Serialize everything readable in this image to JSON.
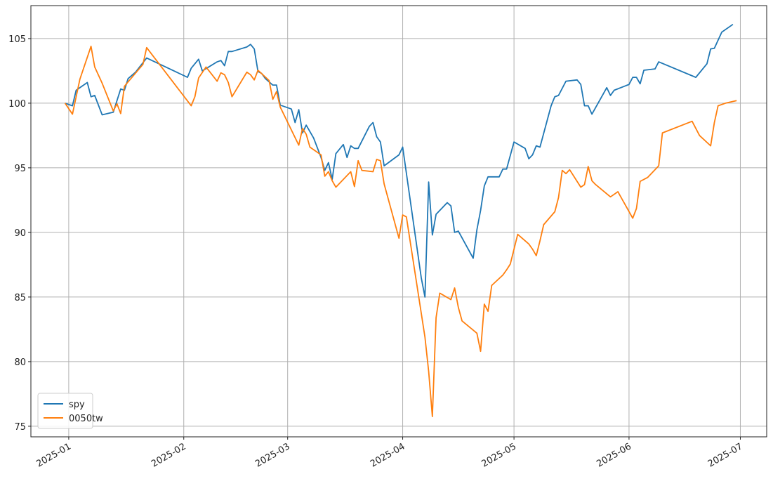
{
  "chart_data": {
    "type": "line",
    "xlim": [
      -10.2,
      188.1
    ],
    "xticks": [
      {
        "value": 0,
        "label": "2025-01"
      },
      {
        "value": 31,
        "label": "2025-02"
      },
      {
        "value": 59,
        "label": "2025-03"
      },
      {
        "value": 90,
        "label": "2025-04"
      },
      {
        "value": 120,
        "label": "2025-05"
      },
      {
        "value": 151,
        "label": "2025-06"
      },
      {
        "value": 181,
        "label": "2025-07"
      }
    ],
    "ylim": [
      74.18,
      107.55
    ],
    "yticks": [
      75,
      80,
      85,
      90,
      95,
      100,
      105
    ],
    "grid": true,
    "legend": "lower left",
    "series": [
      {
        "name": "spy",
        "color": "#1f77b4",
        "x": [
          -1,
          1,
          2,
          5,
          6,
          7,
          9,
          12,
          14,
          15,
          16,
          18,
          21,
          32,
          33,
          35,
          36,
          40,
          41,
          42,
          43,
          44,
          48,
          49,
          50,
          51,
          52,
          53,
          55,
          56,
          57,
          60,
          61,
          62,
          63,
          64,
          66,
          68,
          69,
          70,
          71,
          72,
          74,
          75,
          76,
          77,
          78,
          81,
          82,
          83,
          84,
          85,
          89,
          90,
          95,
          96,
          97,
          98,
          99,
          102,
          103,
          104,
          105,
          109,
          110,
          111,
          112,
          113,
          116,
          117,
          118,
          120,
          123,
          124,
          125,
          126,
          127,
          130,
          131,
          132,
          134,
          137,
          138,
          139,
          140,
          141,
          145,
          146,
          147,
          151,
          152,
          153,
          154,
          155,
          158,
          159,
          169,
          172,
          173,
          174,
          176,
          179
        ],
        "values": [
          100,
          99.8,
          101,
          101.6,
          100.5,
          100.6,
          99.1,
          99.3,
          101.1,
          101,
          101.9,
          102.4,
          103.5,
          102,
          102.7,
          103.4,
          102.5,
          103.2,
          103.3,
          102.9,
          104,
          104,
          104.35,
          104.55,
          104.2,
          102.45,
          102.3,
          101.9,
          101.4,
          101.4,
          99.85,
          99.55,
          98.5,
          99.5,
          97.7,
          98.3,
          97.3,
          95.8,
          94.8,
          95.4,
          94.1,
          96.1,
          96.8,
          95.8,
          96.7,
          96.5,
          96.5,
          98.2,
          98.5,
          97.4,
          97,
          95.15,
          96,
          96.6,
          86.5,
          85,
          93.9,
          89.8,
          91.4,
          92.3,
          92.05,
          90,
          90.1,
          88,
          90.2,
          91.7,
          93.6,
          94.3,
          94.3,
          94.9,
          94.9,
          97,
          96.5,
          95.7,
          96,
          96.7,
          96.6,
          99.8,
          100.5,
          100.6,
          101.7,
          101.8,
          101.45,
          99.8,
          99.8,
          99.15,
          101.2,
          100.6,
          101,
          101.45,
          102,
          102,
          101.5,
          102.55,
          102.65,
          103.2,
          102,
          103.05,
          104.2,
          104.25,
          105.5,
          106.1
        ]
      },
      {
        "name": "0050tw",
        "color": "#ff7f0e",
        "x": [
          -1,
          1,
          3,
          6,
          7,
          9,
          12,
          13,
          14,
          15,
          16,
          20,
          21,
          33,
          34,
          35,
          37,
          40,
          41,
          42,
          43,
          44,
          48,
          49,
          50,
          51,
          54,
          55,
          56,
          57,
          62,
          63,
          64,
          65,
          68,
          69,
          70,
          71,
          72,
          76,
          77,
          78,
          79,
          82,
          83,
          84,
          85,
          89,
          90,
          91,
          96,
          97,
          98,
          99,
          100,
          103,
          104,
          105,
          106,
          110,
          111,
          112,
          113,
          114,
          117,
          118,
          119,
          121,
          124,
          125,
          126,
          127,
          128,
          131,
          132,
          133,
          134,
          135,
          138,
          139,
          140,
          141,
          142,
          146,
          148,
          152,
          153,
          154,
          156,
          159,
          160,
          168,
          170,
          173,
          174,
          175,
          177,
          180
        ],
        "values": [
          100,
          99.15,
          101.85,
          104.4,
          102.8,
          101.55,
          99.4,
          99.95,
          99.2,
          101.3,
          101.65,
          103,
          104.3,
          99.8,
          100.5,
          101.95,
          102.8,
          101.7,
          102.35,
          102.2,
          101.6,
          100.5,
          102.4,
          102.2,
          101.8,
          102.55,
          101.75,
          100.3,
          100.9,
          99.7,
          96.75,
          98.05,
          97.6,
          96.6,
          96,
          94.35,
          94.7,
          94,
          93.5,
          94.7,
          93.55,
          95.55,
          94.8,
          94.7,
          95.65,
          95.55,
          93.75,
          89.55,
          91.35,
          91.2,
          81.9,
          79.25,
          75.75,
          83.4,
          85.3,
          84.8,
          85.7,
          84.2,
          83.15,
          82.2,
          80.8,
          84.45,
          83.9,
          85.9,
          86.7,
          87.1,
          87.55,
          89.85,
          89.1,
          88.7,
          88.2,
          89.35,
          90.6,
          91.6,
          92.7,
          94.8,
          94.55,
          94.85,
          93.5,
          93.7,
          95.1,
          94,
          93.7,
          92.75,
          93.15,
          91.1,
          91.85,
          93.95,
          94.25,
          95.15,
          97.7,
          98.6,
          97.5,
          96.7,
          98.5,
          99.8,
          100,
          100.2
        ]
      }
    ]
  }
}
